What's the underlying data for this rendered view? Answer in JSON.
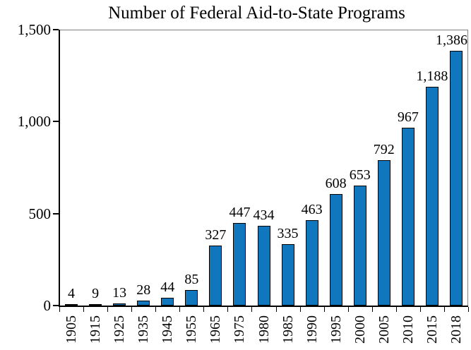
{
  "title": "Number of Federal Aid-to-State Programs",
  "chart_data": {
    "type": "bar",
    "title": "Number of Federal Aid-to-State Programs",
    "categories": [
      "1905",
      "1915",
      "1925",
      "1935",
      "1945",
      "1955",
      "1965",
      "1975",
      "1980",
      "1985",
      "1990",
      "1995",
      "2000",
      "2005",
      "2010",
      "2015",
      "2018"
    ],
    "values": [
      4,
      9,
      13,
      28,
      44,
      85,
      327,
      447,
      434,
      335,
      463,
      608,
      653,
      792,
      967,
      1188,
      1386
    ],
    "value_labels": [
      "4",
      "9",
      "13",
      "28",
      "44",
      "85",
      "327",
      "447",
      "434",
      "335",
      "463",
      "608",
      "653",
      "792",
      "967",
      "1,188",
      "1,386"
    ],
    "xlabel": "",
    "ylabel": "",
    "ylim": [
      0,
      1500
    ],
    "yticks": [
      0,
      500,
      1000,
      1500
    ],
    "ytick_labels": [
      "0",
      "500",
      "1,000",
      "1,500"
    ],
    "grid": false,
    "legend": null,
    "x_labels_rotated_degrees": 90,
    "colors": {
      "bar_fill": "#1076BE",
      "bar_border": "#000000",
      "axis": "#000000",
      "plot_border": "#808080",
      "text": "#000000",
      "background": "#ffffff"
    }
  }
}
